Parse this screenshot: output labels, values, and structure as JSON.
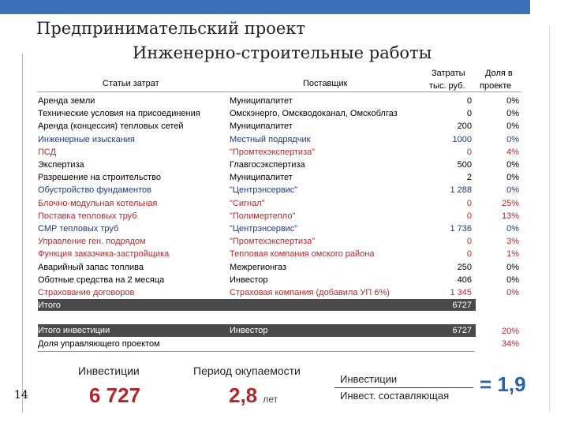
{
  "title": {
    "line1": "Предпринимательский проект",
    "line2": "Инженерно-строительные работы"
  },
  "table": {
    "headers": {
      "item": "Статьи затрат",
      "supplier": "Поставщик",
      "cost_line1": "Затраты",
      "cost_line2": "тыс. руб.",
      "share_line1": "Доля в",
      "share_line2": "проекте"
    },
    "rows": [
      {
        "item": "Аренда земли",
        "supplier": "Муниципалитет",
        "cost": "0",
        "share": "0%",
        "color": "#000000"
      },
      {
        "item": "Технические условия на присоединения",
        "supplier": "Омскэнерго, Омскводоканал, Омскоблгаз",
        "cost": "0",
        "share": "0%",
        "color": "#000000"
      },
      {
        "item": "Аренда (концессия) тепловых сетей",
        "supplier": "Муниципалитет",
        "cost": "200",
        "share": "0%",
        "color": "#000000"
      },
      {
        "item": "Инженерные изыскания",
        "supplier": "Местный подрядчик",
        "cost": "1000",
        "share": "0%",
        "color": "#1f3a7a"
      },
      {
        "item": "ПСД",
        "supplier": "\"Промтехэкспертиза\"",
        "cost": "0",
        "share": "4%",
        "color": "#b0282e"
      },
      {
        "item": "Экспертиза",
        "supplier": "Главгосэкспертиза",
        "cost": "500",
        "share": "0%",
        "color": "#000000"
      },
      {
        "item": "Разрешение на строительство",
        "supplier": "Муниципалитет",
        "cost": "2",
        "share": "0%",
        "color": "#000000"
      },
      {
        "item": "Обустройство фундаментов",
        "supplier": "\"Центрэнсервис\"",
        "cost": "1 288",
        "share": "0%",
        "color": "#1f3a7a"
      },
      {
        "item": "Блочно-модульная котельная",
        "supplier": "\"Сигнал\"",
        "cost": "0",
        "share": "25%",
        "color": "#b0282e"
      },
      {
        "item": "Поставка тепловых труб",
        "supplier": "\"Полимертепло\"",
        "cost": "0",
        "share": "13%",
        "color": "#b0282e"
      },
      {
        "item": "СМР тепловых труб",
        "supplier": "\"Центрэнсервис\"",
        "cost": "1 736",
        "share": "0%",
        "color": "#1f3a7a"
      },
      {
        "item": "Управление ген. подрядом",
        "supplier": "\"Промтехэкспертиза\"",
        "cost": "0",
        "share": "3%",
        "color": "#b0282e"
      },
      {
        "item": "Функция заказчика-застройщика",
        "supplier": "Тепловая компания омского района",
        "cost": "0",
        "share": "1%",
        "color": "#b0282e"
      },
      {
        "item": "Аварийный запас топлива",
        "supplier": "Межрегионгаз",
        "cost": "250",
        "share": "0%",
        "color": "#000000"
      },
      {
        "item": "Оботные средства на 2 месяца",
        "supplier": "Инвестор",
        "cost": "406",
        "share": "0%",
        "color": "#000000"
      },
      {
        "item": "Страхование договоров",
        "supplier": "Страховая компания (добавила УП 6%)",
        "cost": "1 345",
        "share": "0%",
        "color": "#b0282e"
      }
    ],
    "total": {
      "item": "Итого",
      "cost": "6727"
    },
    "investments": {
      "item": "Итого инвестиции",
      "supplier": "Инвестор",
      "cost": "6727",
      "share": "20%"
    },
    "manager_share": {
      "item": "Доля управляющего проектом",
      "share": "34%"
    }
  },
  "slide_number": "14",
  "kpi": {
    "investments_label": "Инвестиции",
    "investments_value": "6 727",
    "payback_label": "Период окупаемости",
    "payback_value": "2,8",
    "payback_unit": "лет"
  },
  "ratio": {
    "numerator": "Инвестиции",
    "denominator": "Инвест. составляющая",
    "value": "= 1,9"
  }
}
